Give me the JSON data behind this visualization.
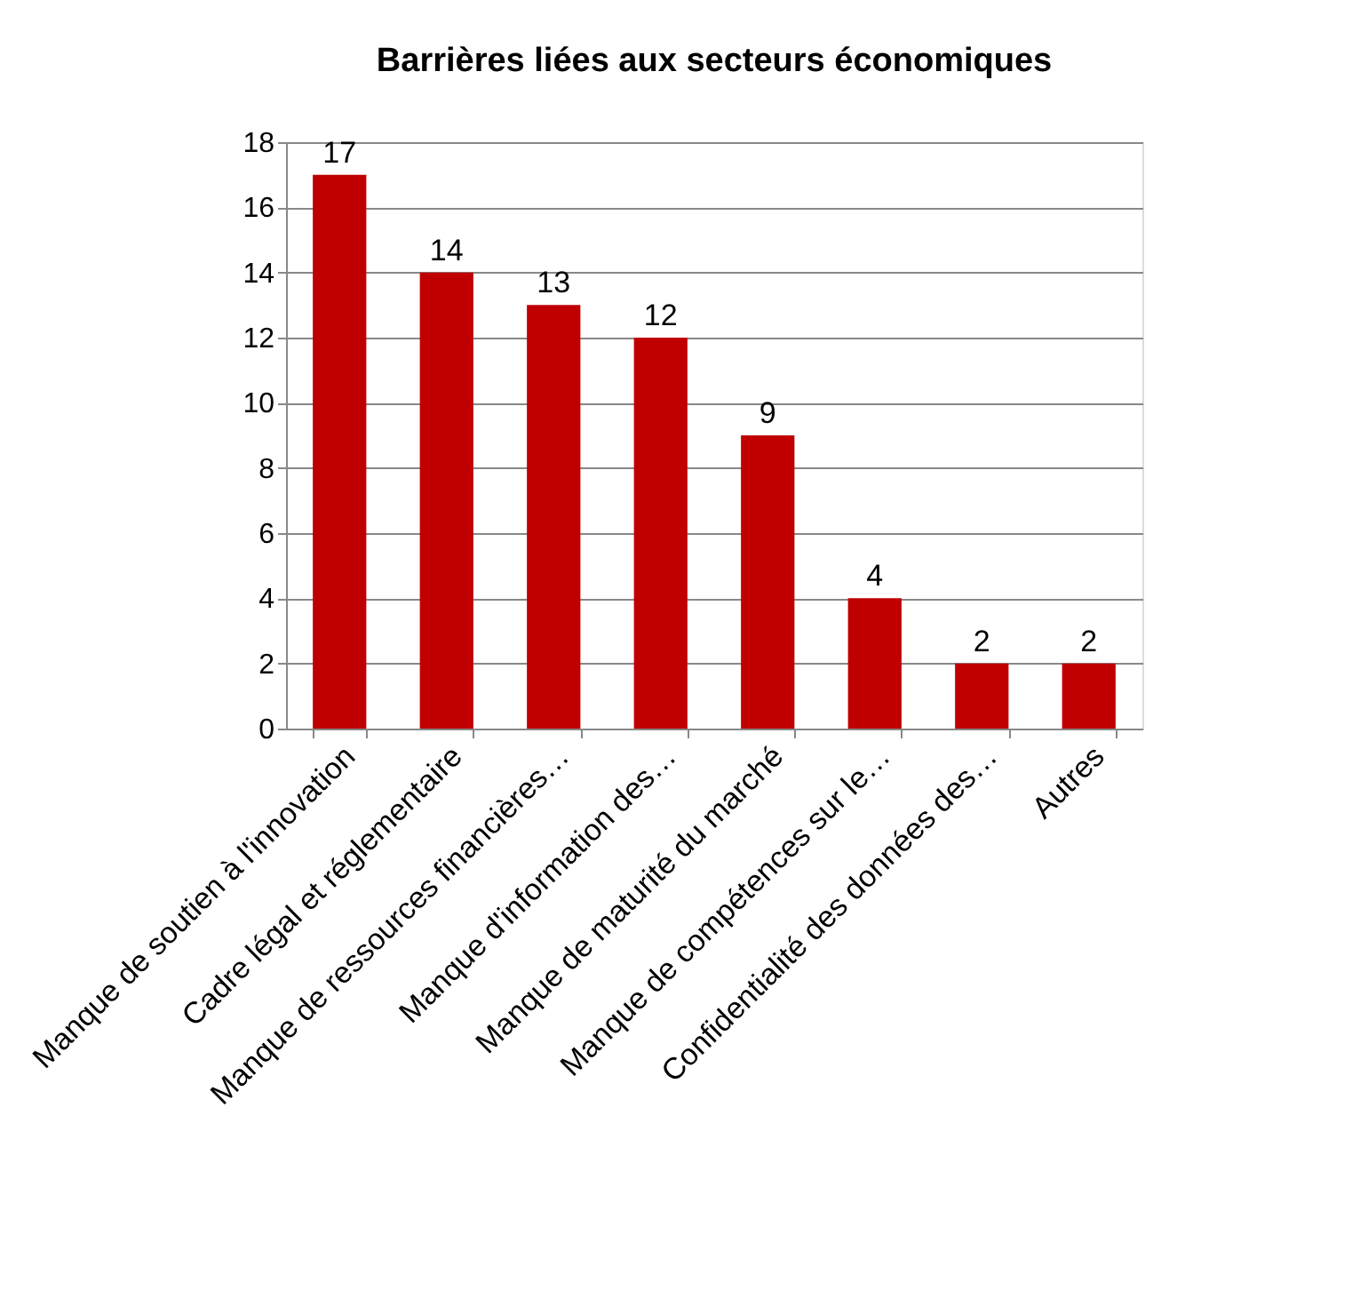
{
  "chart_data": {
    "type": "bar",
    "title": "Barrières liées aux secteurs économiques",
    "categories": [
      "Manque de soutien à l'innovation",
      "Cadre légal et réglementaire",
      "Manque de ressources financières…",
      "Manque d'information des…",
      "Manque de maturité du marché",
      "Manque de compétences sur le…",
      "Confidentialité des données des…",
      "Autres"
    ],
    "values": [
      17,
      14,
      13,
      12,
      9,
      4,
      2,
      2
    ],
    "color": "#c00000",
    "ylim": [
      0,
      18
    ],
    "yticks": [
      0,
      2,
      4,
      6,
      8,
      10,
      12,
      14,
      16,
      18
    ],
    "grid": "y",
    "data_labels": true
  }
}
